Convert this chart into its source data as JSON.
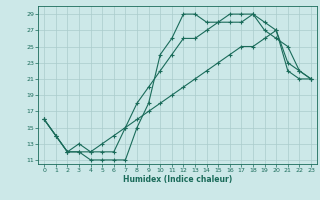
{
  "title": "",
  "xlabel": "Humidex (Indice chaleur)",
  "background_color": "#cce8e8",
  "grid_color": "#aacccc",
  "line_color": "#1a6b5a",
  "xlim": [
    -0.5,
    23.5
  ],
  "ylim": [
    10.5,
    30
  ],
  "yticks": [
    11,
    13,
    15,
    17,
    19,
    21,
    23,
    25,
    27,
    29
  ],
  "xticks": [
    0,
    1,
    2,
    3,
    4,
    5,
    6,
    7,
    8,
    9,
    10,
    11,
    12,
    13,
    14,
    15,
    16,
    17,
    18,
    19,
    20,
    21,
    22,
    23
  ],
  "line1_x": [
    0,
    1,
    2,
    3,
    4,
    5,
    6,
    7,
    8,
    9,
    10,
    11,
    12,
    13,
    14,
    15,
    16,
    17,
    18,
    19,
    20,
    21,
    22,
    23
  ],
  "line1_y": [
    16,
    14,
    12,
    12,
    11,
    11,
    11,
    11,
    15,
    18,
    24,
    26,
    29,
    29,
    28,
    28,
    29,
    29,
    29,
    27,
    26,
    25,
    22,
    21
  ],
  "line2_x": [
    0,
    1,
    2,
    3,
    4,
    5,
    6,
    7,
    8,
    9,
    10,
    11,
    12,
    13,
    14,
    15,
    16,
    17,
    18,
    19,
    20,
    21,
    22,
    23
  ],
  "line2_y": [
    16,
    14,
    12,
    12,
    12,
    12,
    12,
    15,
    18,
    20,
    22,
    24,
    26,
    26,
    27,
    28,
    28,
    28,
    29,
    28,
    27,
    23,
    22,
    21
  ],
  "line3_x": [
    0,
    1,
    2,
    3,
    4,
    5,
    6,
    7,
    8,
    9,
    10,
    11,
    12,
    13,
    14,
    15,
    16,
    17,
    18,
    19,
    20,
    21,
    22,
    23
  ],
  "line3_y": [
    16,
    14,
    12,
    13,
    12,
    13,
    14,
    15,
    16,
    17,
    18,
    19,
    20,
    21,
    22,
    23,
    24,
    25,
    25,
    26,
    27,
    22,
    21,
    21
  ]
}
